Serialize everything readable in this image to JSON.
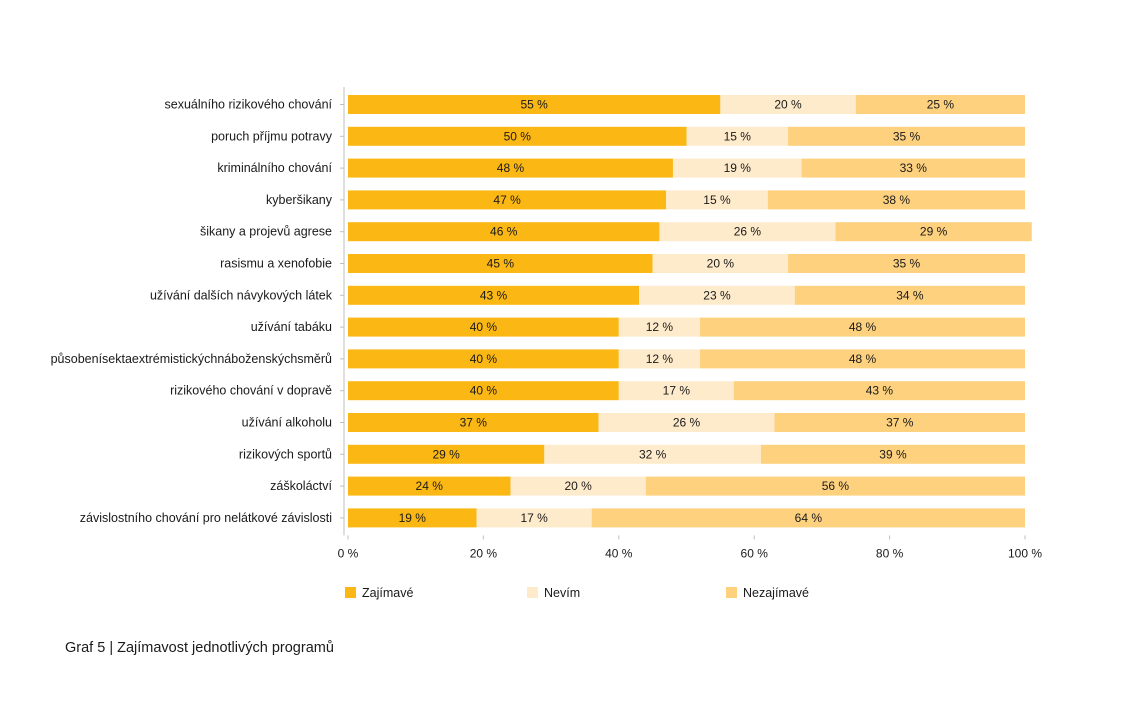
{
  "chart_data": {
    "type": "bar",
    "orientation": "horizontal",
    "stacked": true,
    "categories": [
      "sexuálního rizikového chování",
      "poruch příjmu potravy",
      "kriminálního chování",
      "kyberšikany",
      "šikany a projevů agrese",
      "rasismu a xenofobie",
      "užívání dalších návykových látek",
      "užívání tabáku",
      "působenísektaextrémistickýchnáboženskýchsměrů",
      "rizikového chování v dopravě",
      "užívání alkoholu",
      "rizikových sportů",
      "záškoláctví",
      "závislostního chování pro nelátkové závislosti"
    ],
    "series": [
      {
        "name": "Zajímavé",
        "color": "#FBB714",
        "values": [
          55,
          50,
          48,
          47,
          46,
          45,
          43,
          40,
          40,
          40,
          37,
          29,
          24,
          19
        ]
      },
      {
        "name": "Nevím",
        "color": "#FEEBCB",
        "values": [
          20,
          15,
          19,
          15,
          26,
          20,
          23,
          12,
          12,
          17,
          26,
          32,
          20,
          17
        ]
      },
      {
        "name": "Nezajímavé",
        "color": "#FDD17E",
        "values": [
          25,
          35,
          33,
          38,
          29,
          35,
          34,
          48,
          48,
          43,
          37,
          39,
          56,
          64
        ]
      }
    ],
    "xlim": [
      0,
      100
    ],
    "x_ticks": [
      "0 %",
      "20 %",
      "40 %",
      "60 %",
      "80 %",
      "100 %"
    ],
    "value_suffix": " %",
    "grid": false,
    "legend_position": "bottom"
  },
  "caption": "Graf 5 | Zajímavost jednotlivých programů"
}
